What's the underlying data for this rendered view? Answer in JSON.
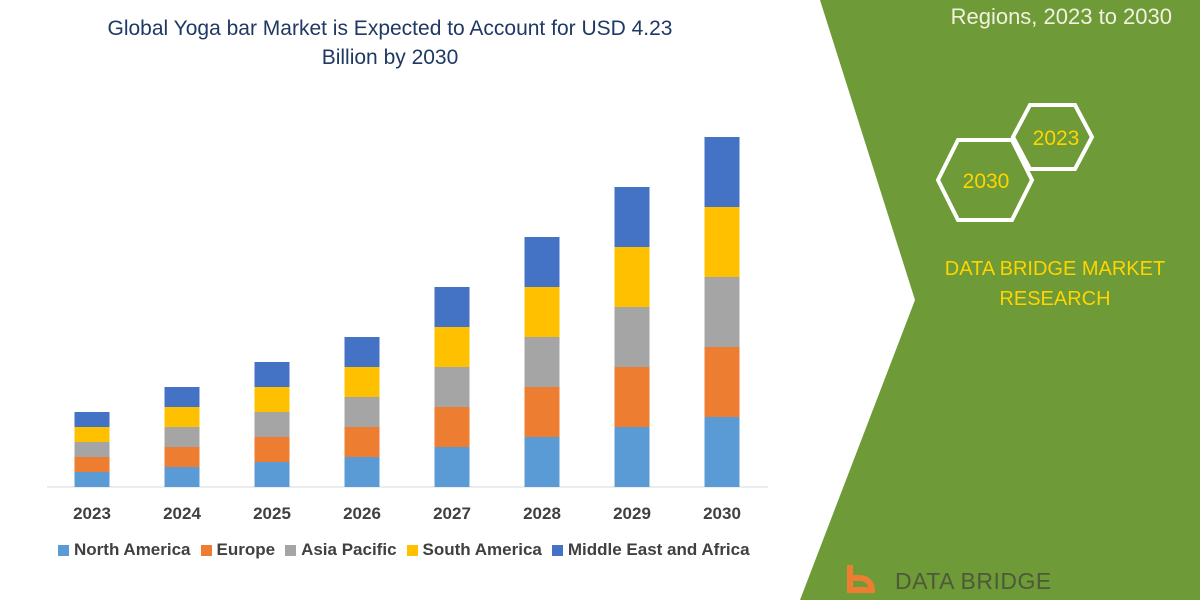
{
  "header": {
    "subtitle_right": "Regions, 2023 to 2030"
  },
  "brand": {
    "line1": "DATA BRIDGE MARKET",
    "line2": "RESEARCH",
    "hex_a": "2023",
    "hex_b": "2030",
    "logo_text": "DATA BRIDGE"
  },
  "colors": {
    "green_panel": "#6e9a37",
    "hex_stroke": "#ffffff",
    "brand_text": "#ffd500"
  },
  "chart_data": {
    "type": "bar",
    "stacked": true,
    "title": "Global Yoga bar Market is Expected to Account for USD 4.23 Billion by 2030",
    "title_lines": [
      "Global Yoga bar Market is Expected to Account for USD 4.23",
      "Billion by 2030"
    ],
    "xlabel": "",
    "ylabel": "",
    "grid": false,
    "legend": "bottom",
    "categories": [
      "2023",
      "2024",
      "2025",
      "2026",
      "2027",
      "2028",
      "2029",
      "2030"
    ],
    "series": [
      {
        "name": "North America",
        "color": "#5b9bd5",
        "values": [
          1.5,
          2,
          2.5,
          3,
          4,
          5,
          6,
          7
        ]
      },
      {
        "name": "Europe",
        "color": "#ed7d31",
        "values": [
          1.5,
          2,
          2.5,
          3,
          4,
          5,
          6,
          7
        ]
      },
      {
        "name": "Asia Pacific",
        "color": "#a5a5a5",
        "values": [
          1.5,
          2,
          2.5,
          3,
          4,
          5,
          6,
          7
        ]
      },
      {
        "name": "South America",
        "color": "#ffc000",
        "values": [
          1.5,
          2,
          2.5,
          3,
          4,
          5,
          6,
          7
        ]
      },
      {
        "name": "Middle East and Africa",
        "color": "#4472c4",
        "values": [
          1.5,
          2,
          2.5,
          3,
          4,
          5,
          6,
          7
        ]
      }
    ]
  }
}
